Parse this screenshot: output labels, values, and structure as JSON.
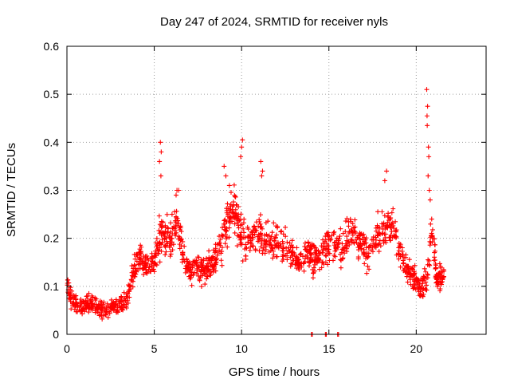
{
  "chart_data": {
    "type": "scatter",
    "title": "Day 247 of 2024, SRMTID for receiver nyls",
    "xlabel": "GPS time / hours",
    "ylabel": "SRMTID / TECUs",
    "xlim": [
      0,
      24
    ],
    "ylim": [
      0,
      0.6
    ],
    "x_ticks": [
      0,
      5,
      10,
      15,
      20
    ],
    "x_tick_labels": [
      "0",
      "5",
      "10",
      "15",
      "20"
    ],
    "y_ticks": [
      0,
      0.1,
      0.2,
      0.3,
      0.4,
      0.5,
      0.6
    ],
    "y_tick_labels": [
      "0",
      "0.1",
      "0.2",
      "0.3",
      "0.4",
      "0.5",
      "0.6"
    ],
    "grid": true,
    "marker": "plus",
    "color": "#ff0000",
    "series": [
      {
        "name": "SRMTID",
        "envelope": {
          "x": [
            0,
            0.1,
            0.3,
            0.6,
            1,
            1.5,
            2,
            2.5,
            3,
            3.5,
            3.9,
            4.2,
            4.6,
            5,
            5.3,
            5.5,
            6,
            6.3,
            6.6,
            7,
            7.4,
            7.8,
            8.3,
            8.8,
            9.2,
            9.6,
            10,
            10.4,
            10.8,
            11.3,
            11.8,
            12.3,
            12.8,
            13.3,
            13.7,
            14,
            14.3,
            14.7,
            15,
            15.3,
            15.7,
            16.1,
            16.5,
            16.9,
            17.3,
            17.8,
            18.2,
            18.6,
            19,
            19.4,
            19.8,
            20.2,
            20.6,
            20.9,
            21.2,
            21.6
          ],
          "y": [
            0.11,
            0.09,
            0.07,
            0.06,
            0.06,
            0.065,
            0.05,
            0.055,
            0.06,
            0.08,
            0.14,
            0.17,
            0.13,
            0.15,
            0.2,
            0.21,
            0.2,
            0.24,
            0.18,
            0.13,
            0.14,
            0.13,
            0.15,
            0.18,
            0.24,
            0.26,
            0.2,
            0.19,
            0.21,
            0.2,
            0.19,
            0.19,
            0.17,
            0.15,
            0.17,
            0.16,
            0.16,
            0.17,
            0.18,
            0.19,
            0.18,
            0.2,
            0.21,
            0.19,
            0.16,
            0.21,
            0.22,
            0.23,
            0.18,
            0.14,
            0.12,
            0.1,
            0.11,
            0.22,
            0.11,
            0.12
          ],
          "spread": [
            0.04,
            0.035,
            0.03,
            0.025,
            0.025,
            0.025,
            0.025,
            0.025,
            0.025,
            0.03,
            0.04,
            0.04,
            0.04,
            0.05,
            0.07,
            0.06,
            0.06,
            0.05,
            0.05,
            0.04,
            0.04,
            0.04,
            0.04,
            0.05,
            0.07,
            0.07,
            0.07,
            0.06,
            0.06,
            0.06,
            0.05,
            0.05,
            0.05,
            0.04,
            0.04,
            0.05,
            0.05,
            0.05,
            0.05,
            0.06,
            0.05,
            0.05,
            0.05,
            0.05,
            0.05,
            0.05,
            0.05,
            0.05,
            0.05,
            0.04,
            0.04,
            0.04,
            0.05,
            0.06,
            0.04,
            0.04
          ]
        },
        "outliers": [
          {
            "x": 5.35,
            "y": 0.4
          },
          {
            "x": 5.4,
            "y": 0.38
          },
          {
            "x": 5.3,
            "y": 0.36
          },
          {
            "x": 5.38,
            "y": 0.33
          },
          {
            "x": 6.3,
            "y": 0.3
          },
          {
            "x": 6.25,
            "y": 0.29
          },
          {
            "x": 6.4,
            "y": 0.3
          },
          {
            "x": 9.0,
            "y": 0.35
          },
          {
            "x": 9.1,
            "y": 0.33
          },
          {
            "x": 9.3,
            "y": 0.31
          },
          {
            "x": 10.05,
            "y": 0.405
          },
          {
            "x": 10.0,
            "y": 0.39
          },
          {
            "x": 9.95,
            "y": 0.37
          },
          {
            "x": 11.1,
            "y": 0.36
          },
          {
            "x": 11.2,
            "y": 0.34
          },
          {
            "x": 11.15,
            "y": 0.33
          },
          {
            "x": 18.3,
            "y": 0.34
          },
          {
            "x": 18.2,
            "y": 0.32
          },
          {
            "x": 20.6,
            "y": 0.51
          },
          {
            "x": 20.65,
            "y": 0.475
          },
          {
            "x": 20.62,
            "y": 0.455
          },
          {
            "x": 20.63,
            "y": 0.435
          },
          {
            "x": 20.7,
            "y": 0.39
          },
          {
            "x": 20.72,
            "y": 0.37
          },
          {
            "x": 20.68,
            "y": 0.33
          },
          {
            "x": 20.75,
            "y": 0.3
          },
          {
            "x": 20.8,
            "y": 0.28
          },
          {
            "x": 14.0,
            "y": 0.0
          },
          {
            "x": 14.05,
            "y": 0.0
          },
          {
            "x": 14.8,
            "y": 0.0
          },
          {
            "x": 14.85,
            "y": 0.0
          },
          {
            "x": 15.5,
            "y": 0.0
          },
          {
            "x": 15.55,
            "y": 0.0
          }
        ]
      }
    ],
    "data_gaps_hours": [
      [
        21.7,
        24
      ]
    ]
  },
  "colors": {
    "points": "#ff0000",
    "frame": "#000000",
    "grid": "#a0a0a0",
    "background": "#ffffff"
  }
}
